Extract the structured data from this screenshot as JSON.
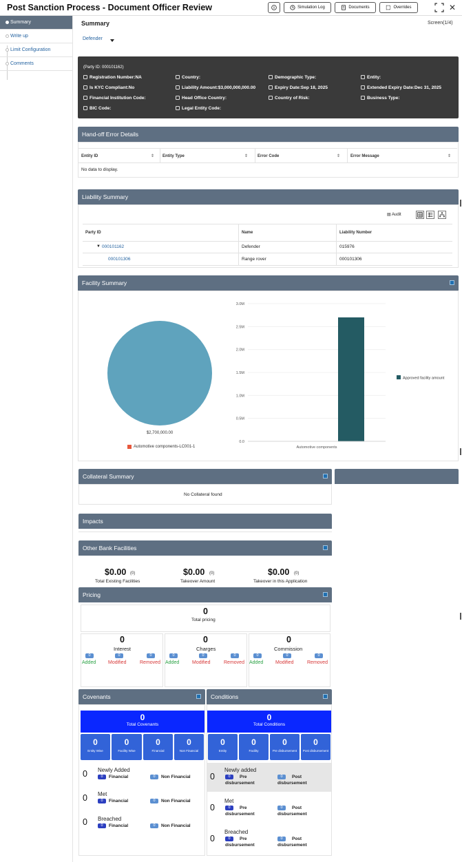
{
  "header": {
    "title": "Post Sanction Process - Document Officer Review",
    "simulation_log": "Simulation Log",
    "documents": "Documents",
    "overrides": "Overrides"
  },
  "sidebar": {
    "items": [
      {
        "label": "Summary"
      },
      {
        "label": "Write up"
      },
      {
        "label": "Limit Configuration"
      },
      {
        "label": "Comments"
      }
    ]
  },
  "main": {
    "title": "Summary",
    "screen": "Screen(1/4)",
    "tab": "Defender"
  },
  "party": {
    "party_id": "(Party ID: 000101162)",
    "fields": {
      "registration": "Registration Number:NA",
      "country": "Country:",
      "demographic": "Demographic Type:",
      "entity": "Entity:",
      "kyc": "Is KYC Compliant:No",
      "liability": "Liability Amount:$3,000,000,000.00",
      "expiry": "Expiry Date:Sep 18, 2025",
      "ext_expiry": "Extended Expiry Date:Dec 31, 2025",
      "fin_inst": "Financial Institution Code:",
      "head_office": "Head Office Country:",
      "risk": "Country of Risk:",
      "business": "Business Type:",
      "bic": "BIC Code:",
      "legal": "Legal Entity Code:"
    }
  },
  "handoff": {
    "title": "Hand-off Error Details",
    "columns": [
      "Entity ID",
      "Entity Type",
      "Error Code",
      "Error Message"
    ],
    "empty": "No data to display."
  },
  "liability": {
    "title": "Liability Summary",
    "audit": "Audit",
    "columns": [
      "Party ID",
      "Name",
      "Liability Number"
    ],
    "rows": [
      {
        "party_id": "000101162",
        "name": "Defender",
        "liability_number": "015976"
      },
      {
        "party_id": "000101306",
        "name": "Range rover",
        "liability_number": "000101306"
      }
    ]
  },
  "facility": {
    "title": "Facility Summary"
  },
  "chart_data": [
    {
      "type": "pie",
      "labels": [
        "Automotive components-LC001-1"
      ],
      "values": [
        2700000
      ],
      "value_label": "$2,700,000.00",
      "colors": [
        "#5fa3bd"
      ],
      "legend": "bottom"
    },
    {
      "type": "bar",
      "categories": [
        "Automotive components"
      ],
      "series": [
        {
          "name": "Approved facility amount",
          "values": [
            2700000
          ]
        }
      ],
      "ylim": [
        0,
        3000000
      ],
      "yticks": [
        "0.0",
        "0.5M",
        "1.0M",
        "1.5M",
        "2.0M",
        "2.5M",
        "3.0M"
      ],
      "colors": [
        "#245b63"
      ],
      "legend": "right"
    }
  ],
  "collateral": {
    "title": "Collateral Summary",
    "empty": "No Collateral found"
  },
  "impacts": {
    "title": "Impacts"
  },
  "other_bank": {
    "title": "Other Bank Facilities",
    "items": [
      {
        "amount": "$0.00",
        "count": "(0)",
        "label": "Total Existing Facilities"
      },
      {
        "amount": "$0.00",
        "count": "(0)",
        "label": "Takeover Amount"
      },
      {
        "amount": "$0.00",
        "count": "(0)",
        "label": "Takeover in this Application"
      }
    ]
  },
  "pricing": {
    "title": "Pricing",
    "total": "0",
    "total_label": "Total pricing",
    "groups": [
      {
        "value": "0",
        "name": "Interest",
        "added": "0",
        "modified": "0",
        "removed": "0"
      },
      {
        "value": "0",
        "name": "Charges",
        "added": "0",
        "modified": "0",
        "removed": "0"
      },
      {
        "value": "0",
        "name": "Commission",
        "added": "0",
        "modified": "0",
        "removed": "0"
      }
    ],
    "added_label": "Added",
    "modified_label": "Modified",
    "removed_label": "Removed"
  },
  "covenants": {
    "title": "Covenants",
    "total": "0",
    "total_label": "Total Covenants",
    "tiles": [
      {
        "value": "0",
        "label": "Entity Wise"
      },
      {
        "value": "0",
        "label": "Facility Wise"
      },
      {
        "value": "0",
        "label": "Financial"
      },
      {
        "value": "0",
        "label": "Non Financial"
      }
    ],
    "rows": [
      {
        "count": "0",
        "label": "Newly Added",
        "a": "0",
        "a_label": "Financial",
        "b": "0",
        "b_label": "Non Financial"
      },
      {
        "count": "0",
        "label": "Met",
        "a": "0",
        "a_label": "Financial",
        "b": "0",
        "b_label": "Non Financial"
      },
      {
        "count": "0",
        "label": "Breached",
        "a": "0",
        "a_label": "Financial",
        "b": "0",
        "b_label": "Non Financial"
      }
    ]
  },
  "conditions": {
    "title": "Conditions",
    "total": "0",
    "total_label": "Total Conditions",
    "tiles": [
      {
        "value": "0",
        "label": "Entity"
      },
      {
        "value": "0",
        "label": "Facility"
      },
      {
        "value": "0",
        "label": "Pre disbursement"
      },
      {
        "value": "0",
        "label": "Post disbursement"
      }
    ],
    "rows": [
      {
        "count": "0",
        "label": "Newly added",
        "a": "0",
        "a_label1": "Pre",
        "a_label2": "disbursement",
        "b": "0",
        "b_label1": "Post",
        "b_label2": "disbursement"
      },
      {
        "count": "0",
        "label": "Met",
        "a": "0",
        "a_label1": "Pre",
        "a_label2": "disbursement",
        "b": "0",
        "b_label1": "Post",
        "b_label2": "disbursement"
      },
      {
        "count": "0",
        "label": "Breached",
        "a": "0",
        "a_label1": "Pre",
        "a_label2": "disbursement",
        "b": "0",
        "b_label1": "Post",
        "b_label2": "disbursement"
      }
    ]
  }
}
